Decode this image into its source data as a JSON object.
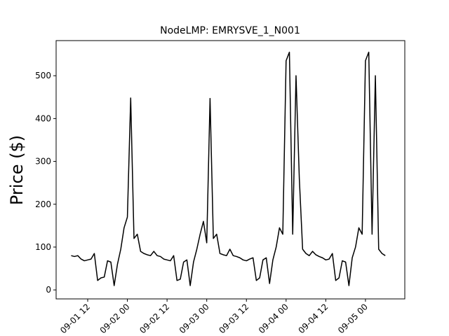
{
  "chart_data": {
    "type": "line",
    "title": "NodeLMP: EMRYSVE_1_N001",
    "y_label": "Price ($)",
    "x": [
      7,
      8,
      9,
      10,
      11,
      12,
      13,
      14,
      15,
      16,
      17,
      18,
      19,
      20,
      21,
      22,
      23,
      24,
      25,
      26,
      27,
      28,
      29,
      30,
      31,
      32,
      33,
      34,
      35,
      36,
      37,
      38,
      39,
      40,
      41,
      42,
      43,
      44,
      45,
      46,
      47,
      48,
      49,
      50,
      51,
      52,
      53,
      54,
      55,
      56,
      57,
      58,
      59,
      60,
      61,
      62,
      63,
      64,
      65,
      66,
      67,
      68,
      69,
      70,
      71,
      72,
      73,
      74,
      75,
      76,
      77,
      78,
      79,
      80,
      81,
      82,
      83,
      84,
      85,
      86,
      87,
      88,
      89,
      90,
      91,
      92,
      93,
      94,
      95,
      96,
      97,
      98,
      99,
      100,
      101,
      102
    ],
    "series": [
      {
        "name": "Price",
        "color": "#000000",
        "values": [
          80,
          78,
          80,
          72,
          68,
          70,
          72,
          85,
          22,
          28,
          30,
          68,
          65,
          10,
          60,
          95,
          145,
          170,
          448,
          120,
          130,
          90,
          85,
          82,
          80,
          90,
          80,
          78,
          72,
          70,
          68,
          80,
          22,
          25,
          65,
          70,
          10,
          65,
          95,
          130,
          160,
          110,
          447,
          120,
          130,
          85,
          82,
          80,
          95,
          80,
          78,
          75,
          70,
          68,
          72,
          75,
          22,
          28,
          70,
          75,
          15,
          70,
          100,
          145,
          130,
          535,
          555,
          130,
          500,
          260,
          95,
          85,
          80,
          90,
          82,
          78,
          75,
          70,
          72,
          85,
          22,
          28,
          68,
          65,
          10,
          75,
          100,
          145,
          130,
          535,
          555,
          130,
          500,
          95,
          85,
          80
        ]
      }
    ],
    "xlim": [
      2.45,
      107.9
    ],
    "xticks": [
      {
        "value": 12,
        "label": "09-01 12"
      },
      {
        "value": 24,
        "label": "09-02 00"
      },
      {
        "value": 36,
        "label": "09-02 12"
      },
      {
        "value": 48,
        "label": "09-03 00"
      },
      {
        "value": 60,
        "label": "09-03 12"
      },
      {
        "value": 72,
        "label": "09-04 00"
      },
      {
        "value": 84,
        "label": "09-04 12"
      },
      {
        "value": 96,
        "label": "09-05 00"
      }
    ],
    "ylim": [
      -21,
      582
    ],
    "yticks": [
      0,
      100,
      200,
      300,
      400,
      500
    ]
  }
}
